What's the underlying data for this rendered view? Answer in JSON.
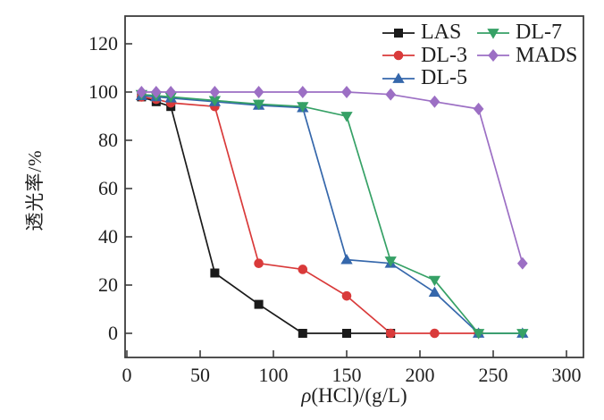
{
  "figure": {
    "background": "#ffffff",
    "frame_color": "#3d3d3d",
    "text_color": "#1f1f1f"
  },
  "chart_data": {
    "type": "line",
    "title": "",
    "xlabel": "ρ(HCl)/(g/L)",
    "xlabel_rho": "ρ",
    "xlabel_rest": "(HCl)/(g/L)",
    "ylabel": "透光率/%",
    "x_ticks": [
      0,
      50,
      100,
      150,
      200,
      250,
      300
    ],
    "y_ticks": [
      0,
      20,
      40,
      60,
      80,
      100,
      120
    ],
    "xlim": [
      -2,
      313
    ],
    "ylim": [
      -10,
      132
    ],
    "grid": false,
    "legend_position": "top-right-inside",
    "series": [
      {
        "name": "LAS",
        "color": "#1a1a1a",
        "marker": "square",
        "legend_column": 0,
        "x": [
          10,
          20,
          30,
          60,
          90,
          120,
          150,
          180
        ],
        "y": [
          98,
          96,
          94,
          25,
          12,
          0,
          0,
          0
        ]
      },
      {
        "name": "DL-3",
        "color": "#d93a3a",
        "marker": "circle",
        "legend_column": 0,
        "x": [
          10,
          20,
          30,
          60,
          90,
          120,
          150,
          180,
          210,
          240
        ],
        "y": [
          98,
          97,
          95.5,
          94,
          29,
          26.5,
          15.5,
          0,
          0,
          0
        ]
      },
      {
        "name": "DL-5",
        "color": "#3567ab",
        "marker": "triangle-up",
        "legend_column": 0,
        "x": [
          10,
          20,
          30,
          60,
          90,
          120,
          150,
          180,
          210,
          240,
          270
        ],
        "y": [
          98.5,
          98,
          97.5,
          96,
          94.5,
          93.5,
          30.5,
          29,
          17,
          0,
          0
        ]
      },
      {
        "name": "DL-7",
        "color": "#36a166",
        "marker": "triangle-down",
        "legend_column": 1,
        "x": [
          10,
          20,
          30,
          60,
          90,
          120,
          150,
          180,
          210,
          240,
          270
        ],
        "y": [
          99,
          98.5,
          98,
          96.5,
          95,
          94,
          90,
          30,
          22,
          0,
          0
        ]
      },
      {
        "name": "MADS",
        "color": "#9c6fc4",
        "marker": "diamond",
        "legend_column": 1,
        "x": [
          10,
          20,
          30,
          60,
          90,
          120,
          150,
          180,
          210,
          240,
          270
        ],
        "y": [
          100,
          100,
          100,
          100,
          100,
          100,
          100,
          99,
          96,
          93,
          29
        ]
      }
    ]
  }
}
